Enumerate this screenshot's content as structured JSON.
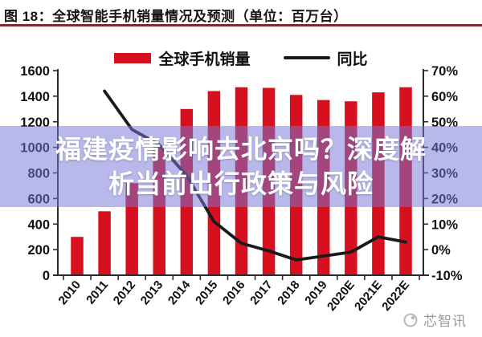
{
  "header": {
    "title": "图 18：全球智能手机销量情况及预测（单位：百万台）",
    "rule_color": "#8a2433"
  },
  "legend": {
    "bars_label": "全球手机销量",
    "line_label": "同比"
  },
  "overlay": {
    "line1": "福建疫情影响去北京吗？深度解",
    "line2": "析当前出行政策与风险",
    "band_color": "rgba(118,118,214,0.52)",
    "text_color": "#ffffff"
  },
  "watermark": {
    "text": "芯智讯"
  },
  "chart_data": {
    "type": "bar",
    "subtype": "bar-line-combo",
    "title": "全球智能手机销量情况及预测（单位：百万台）",
    "categories": [
      "2010",
      "2011",
      "2012",
      "2013",
      "2014",
      "2015",
      "2016",
      "2017",
      "2018",
      "2019",
      "2020E",
      "2021E",
      "2022E"
    ],
    "series": [
      {
        "name": "全球手机销量",
        "type": "bar",
        "color": "#d6101e",
        "values": [
          300,
          500,
          720,
          1010,
          1300,
          1440,
          1470,
          1465,
          1410,
          1370,
          1360,
          1430,
          1470
        ]
      },
      {
        "name": "同比",
        "type": "line",
        "color": "#1a1a1a",
        "values": [
          null,
          62,
          47,
          41,
          29,
          11,
          2.5,
          -0.5,
          -4,
          -2.5,
          -1,
          5,
          3
        ]
      }
    ],
    "left_axis": {
      "min": 0,
      "max": 1600,
      "step": 200,
      "labels": [
        "1600",
        "1400",
        "1200",
        "1000",
        "800",
        "600",
        "400",
        "200",
        "0"
      ]
    },
    "right_axis": {
      "min": -10,
      "max": 70,
      "step": 10,
      "unit": "%",
      "labels": [
        "70%",
        "60%",
        "50%",
        "40%",
        "30%",
        "20%",
        "10%",
        "0%",
        "-10%"
      ]
    },
    "grid": "off",
    "legend_position": "top-center",
    "axis_color": "#2b2b2b",
    "label_color": "#111111"
  }
}
